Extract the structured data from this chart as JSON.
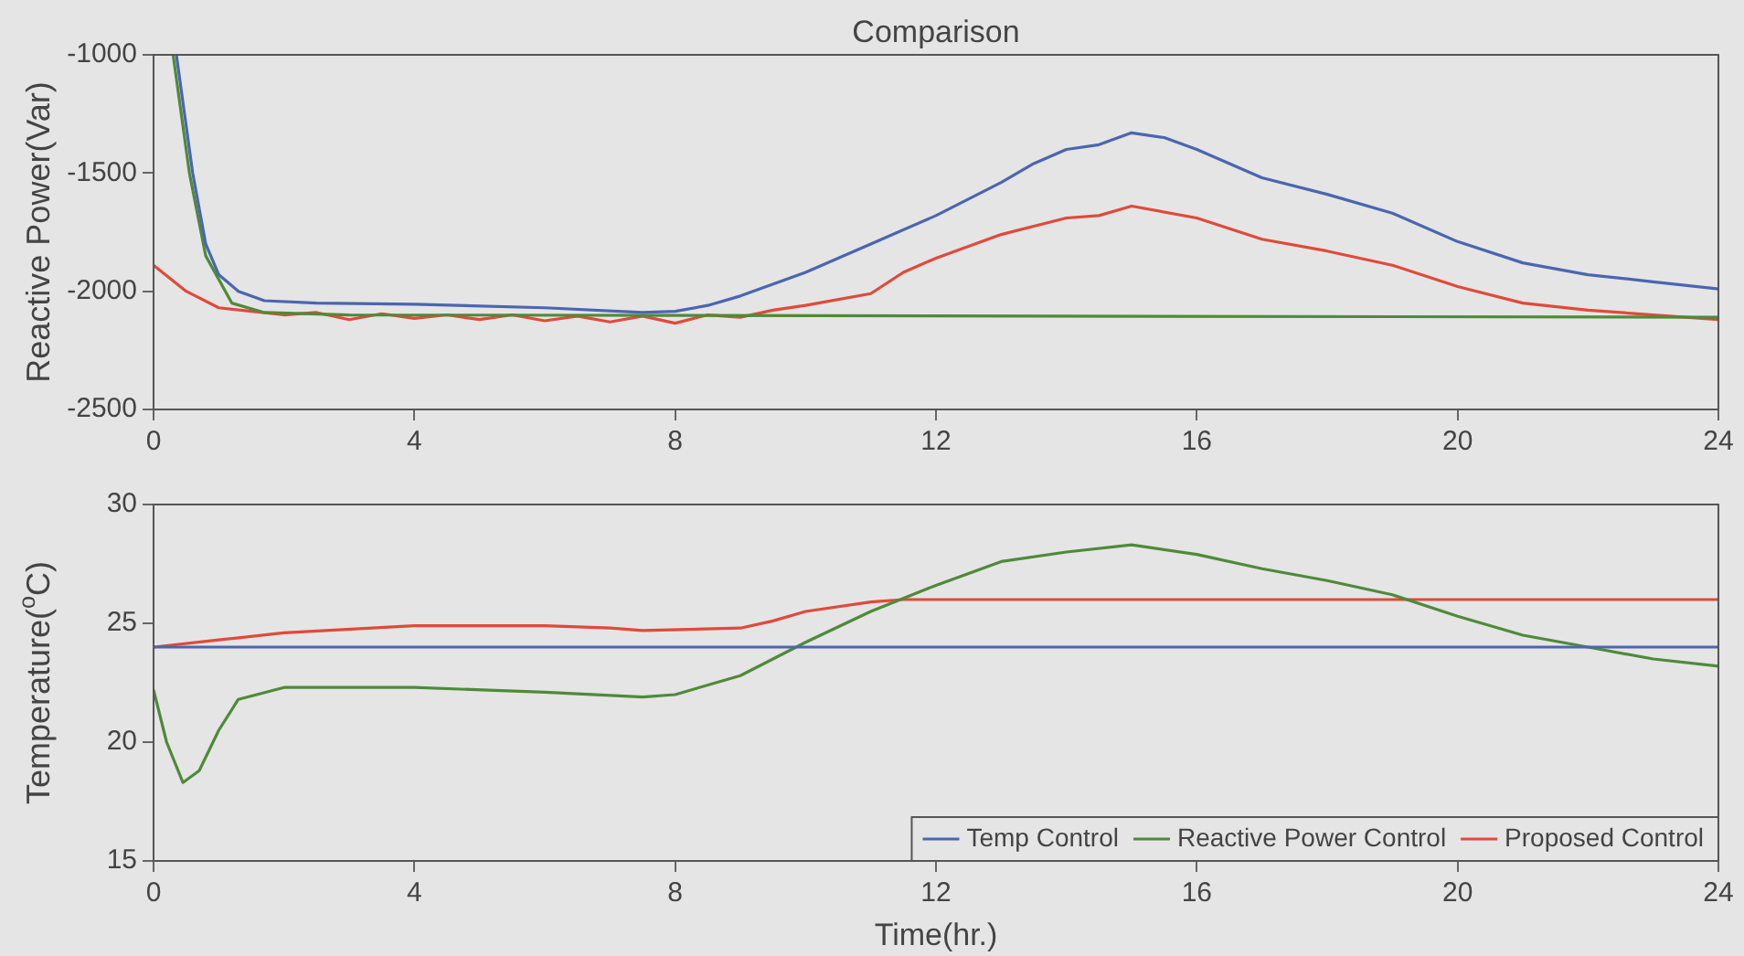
{
  "chart_data": [
    {
      "type": "line",
      "title": "Comparison",
      "ylabel": "Reactive Power(Var)",
      "xlim": [
        0,
        24
      ],
      "xticks": [
        0,
        4,
        8,
        12,
        16,
        20,
        24
      ],
      "ylim": [
        -2500,
        -1000
      ],
      "yticks": [
        -2500,
        -2000,
        -1500,
        -1000
      ],
      "grid": false,
      "legend": false,
      "series": [
        {
          "color": "#4a66b0",
          "x": [
            0.35,
            0.6,
            0.8,
            1.0,
            1.3,
            1.7,
            2.5,
            4,
            6,
            7.5,
            8,
            8.5,
            9,
            10,
            11,
            12,
            13,
            13.5,
            14,
            14.5,
            15,
            15.5,
            16,
            17,
            18,
            19,
            20,
            21,
            22,
            23,
            24
          ],
          "values": [
            -1000,
            -1500,
            -1800,
            -1930,
            -2000,
            -2040,
            -2050,
            -2055,
            -2070,
            -2090,
            -2085,
            -2060,
            -2020,
            -1920,
            -1800,
            -1680,
            -1540,
            -1460,
            -1400,
            -1380,
            -1330,
            -1350,
            -1400,
            -1520,
            -1590,
            -1670,
            -1790,
            -1880,
            -1930,
            -1960,
            -1990
          ]
        },
        {
          "color": "#4e8a3a",
          "x": [
            0.3,
            0.55,
            0.8,
            1.2,
            1.7,
            3,
            24
          ],
          "values": [
            -1000,
            -1500,
            -1850,
            -2050,
            -2090,
            -2100,
            -2110
          ]
        },
        {
          "color": "#e04a3a",
          "x": [
            0,
            0.5,
            1,
            2,
            2.5,
            3,
            3.5,
            4,
            4.5,
            5,
            5.5,
            6,
            6.5,
            7,
            7.5,
            8,
            8.5,
            9,
            9.5,
            10,
            11,
            11.5,
            12,
            13,
            14,
            14.5,
            15,
            16,
            17,
            18,
            19,
            20,
            21,
            22,
            23,
            24
          ],
          "values": [
            -1890,
            -2000,
            -2070,
            -2100,
            -2090,
            -2120,
            -2095,
            -2115,
            -2100,
            -2120,
            -2100,
            -2125,
            -2105,
            -2130,
            -2105,
            -2135,
            -2100,
            -2110,
            -2080,
            -2060,
            -2010,
            -1920,
            -1860,
            -1760,
            -1690,
            -1680,
            -1640,
            -1690,
            -1780,
            -1830,
            -1890,
            -1980,
            -2050,
            -2080,
            -2100,
            -2120
          ]
        }
      ]
    },
    {
      "type": "line",
      "xlabel": "Time(hr.)",
      "ylabel": "Temperature($^{o}$C)",
      "xlim": [
        0,
        24
      ],
      "xticks": [
        0,
        4,
        8,
        12,
        16,
        20,
        24
      ],
      "ylim": [
        15,
        30
      ],
      "yticks": [
        15,
        20,
        25,
        30
      ],
      "grid": false,
      "legend": "bottom right",
      "series": [
        {
          "name": "Temp Control",
          "color": "#4a66b0",
          "x": [
            0,
            24
          ],
          "values": [
            24,
            24
          ]
        },
        {
          "name": "Reactive Power Control",
          "color": "#4e8a3a",
          "x": [
            0,
            0.2,
            0.45,
            0.7,
            1,
            1.3,
            2,
            4,
            6,
            7.5,
            8,
            9,
            10,
            11,
            12,
            13,
            14,
            15,
            16,
            17,
            18,
            19,
            20,
            21,
            22,
            23,
            24
          ],
          "values": [
            22.2,
            20,
            18.3,
            18.8,
            20.5,
            21.8,
            22.3,
            22.3,
            22.1,
            21.9,
            22,
            22.8,
            24.2,
            25.5,
            26.6,
            27.6,
            28,
            28.3,
            27.9,
            27.3,
            26.8,
            26.2,
            25.3,
            24.5,
            24,
            23.5,
            23.2
          ]
        },
        {
          "name": "Proposed Control",
          "color": "#e04a3a",
          "x": [
            0,
            1,
            2,
            4,
            6,
            7,
            7.5,
            9,
            9.5,
            10,
            11,
            11.5,
            24
          ],
          "values": [
            24,
            24.3,
            24.6,
            24.9,
            24.9,
            24.8,
            24.7,
            24.8,
            25.1,
            25.5,
            25.9,
            26,
            26
          ]
        }
      ]
    }
  ]
}
